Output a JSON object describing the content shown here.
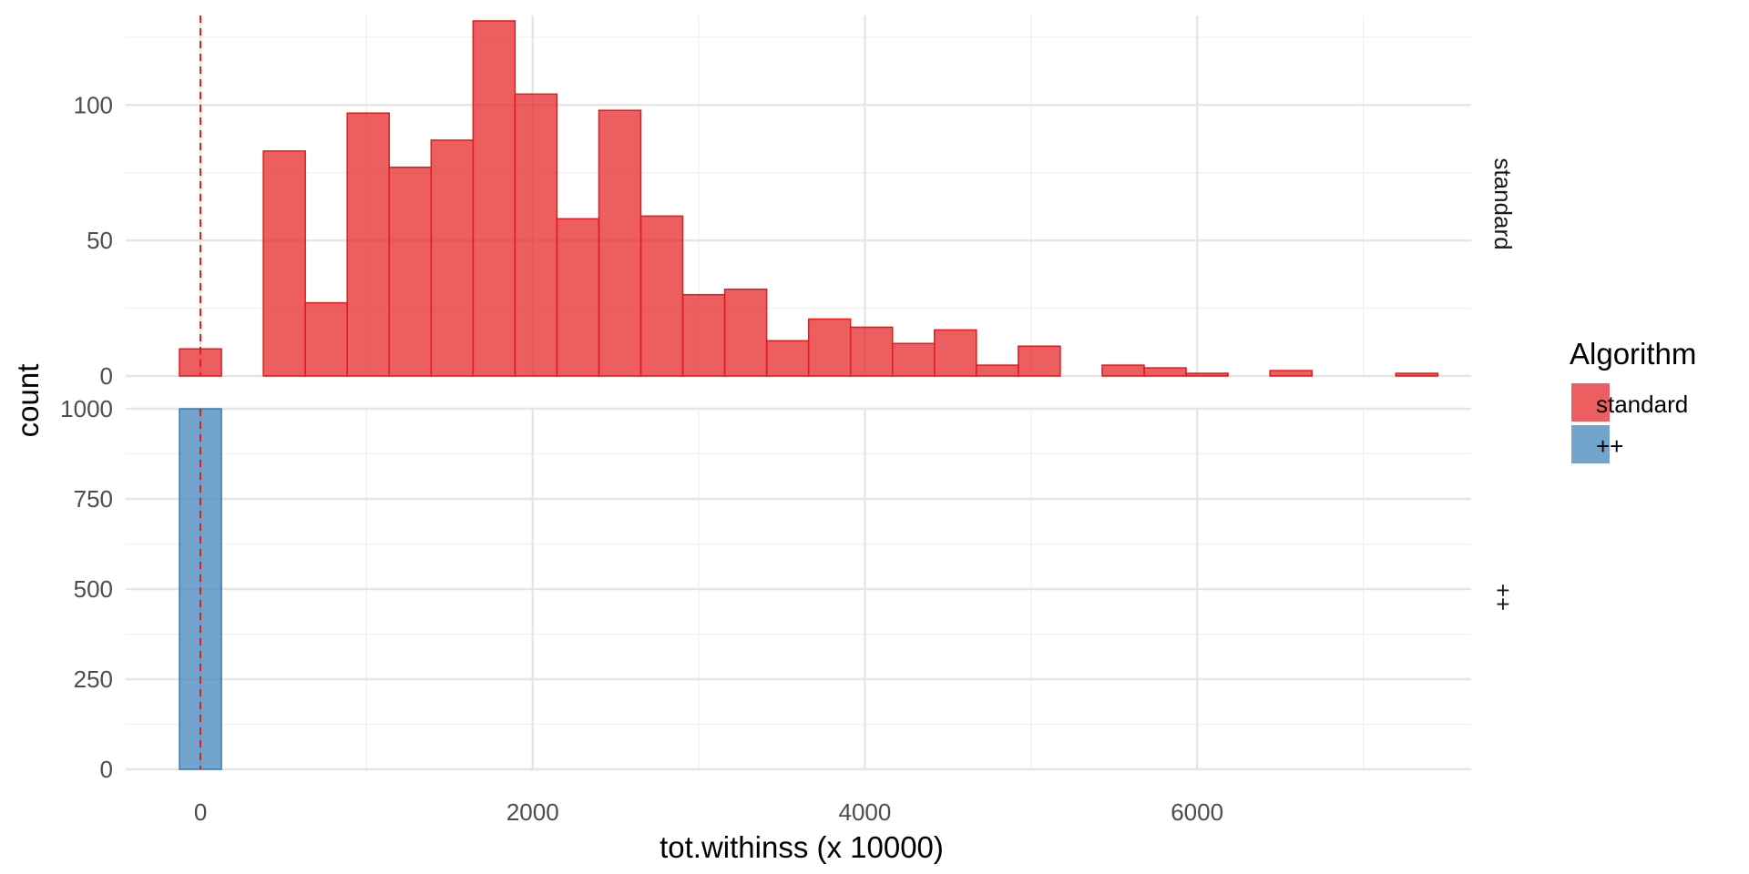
{
  "chart_data": {
    "type": "bar",
    "subtype": "faceted histogram",
    "xlabel": "tot.withinss (x 10000)",
    "ylabel": "count",
    "x_ticks": [
      0,
      2000,
      4000,
      6000
    ],
    "xlim": [
      -450,
      7650
    ],
    "bin_width": 252.5,
    "bin_start": -126.25,
    "reference_line": {
      "x": 0,
      "style": "dashed",
      "color": "#e41a1c"
    },
    "grid": true,
    "legend": {
      "title": "Algorithm",
      "placement": "right",
      "entries": [
        {
          "label": "standard",
          "color": "#e41a1c"
        },
        {
          "label": "++",
          "color": "#377eb8"
        }
      ]
    },
    "facets": [
      {
        "strip": "standard",
        "ylim": [
          0,
          133
        ],
        "y_ticks": [
          0,
          50,
          100
        ],
        "fill": "#e41a1c",
        "values": [
          10,
          0,
          83,
          27,
          97,
          77,
          87,
          131,
          104,
          58,
          98,
          59,
          30,
          32,
          13,
          21,
          18,
          12,
          17,
          4,
          11,
          0,
          4,
          3,
          1,
          0,
          2,
          0,
          0,
          1
        ]
      },
      {
        "strip": "++",
        "ylim": [
          0,
          1000
        ],
        "y_ticks": [
          0,
          250,
          500,
          750,
          1000
        ],
        "fill": "#377eb8",
        "values": [
          1000,
          0,
          0,
          0,
          0,
          0,
          0,
          0,
          0,
          0,
          0,
          0,
          0,
          0,
          0,
          0,
          0,
          0,
          0,
          0,
          0,
          0,
          0,
          0,
          0,
          0,
          0,
          0,
          0,
          0
        ]
      }
    ]
  }
}
